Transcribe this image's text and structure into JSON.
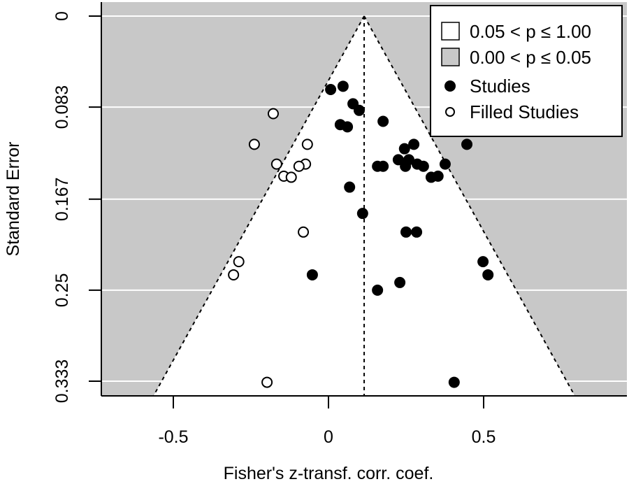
{
  "chart_data": {
    "type": "scatter",
    "subtype": "contour-enhanced funnel plot (trim-and-fill)",
    "title": "",
    "xlabel": "Fisher's z-transf. corr. coef.",
    "ylabel": "Standard Error",
    "xlim": [
      -0.73,
      0.96
    ],
    "ylim": [
      0.3461,
      0
    ],
    "y_reversed": true,
    "x_ticks": [
      -0.5,
      0,
      0.5
    ],
    "x_tick_labels": [
      "-0.5",
      "0",
      "0.5"
    ],
    "y_ticks": [
      0,
      0.083,
      0.167,
      0.25,
      0.333
    ],
    "y_tick_labels": [
      "0",
      "0.083",
      "0.167",
      "0.25",
      "0.333"
    ],
    "grid": "horizontal white lines at y ticks",
    "center_estimate": 0.115,
    "funnel": {
      "apex": [
        0.115,
        0
      ],
      "ci_multiplier": 1.96
    },
    "colors": {
      "significant_region": "#c8c8c8",
      "nonsignificant_region": "#ffffff",
      "studies": "#000000",
      "filled_studies_fill": "#ffffff",
      "filled_studies_stroke": "#000000"
    },
    "legend": {
      "position": "top-right",
      "entries": [
        {
          "label": "0.05 < p ≤ 1.00",
          "symbol": "square",
          "fill": "#ffffff"
        },
        {
          "label": "0.00 < p ≤ 0.05",
          "symbol": "square",
          "fill": "#c8c8c8"
        },
        {
          "label": "Studies",
          "symbol": "filled-circle",
          "fill": "#000000"
        },
        {
          "label": "Filled Studies",
          "symbol": "open-circle",
          "fill": "#ffffff"
        }
      ]
    },
    "series": [
      {
        "name": "Studies",
        "points": [
          {
            "x": 0.007,
            "y": 0.067
          },
          {
            "x": 0.047,
            "y": 0.064
          },
          {
            "x": 0.079,
            "y": 0.08
          },
          {
            "x": 0.099,
            "y": 0.086
          },
          {
            "x": 0.038,
            "y": 0.099
          },
          {
            "x": 0.061,
            "y": 0.101
          },
          {
            "x": 0.176,
            "y": 0.096
          },
          {
            "x": 0.245,
            "y": 0.121
          },
          {
            "x": 0.275,
            "y": 0.117
          },
          {
            "x": 0.446,
            "y": 0.117
          },
          {
            "x": 0.225,
            "y": 0.131
          },
          {
            "x": 0.259,
            "y": 0.131
          },
          {
            "x": 0.248,
            "y": 0.137
          },
          {
            "x": 0.286,
            "y": 0.135
          },
          {
            "x": 0.306,
            "y": 0.137
          },
          {
            "x": 0.376,
            "y": 0.135
          },
          {
            "x": 0.158,
            "y": 0.137
          },
          {
            "x": 0.176,
            "y": 0.137
          },
          {
            "x": 0.331,
            "y": 0.147
          },
          {
            "x": 0.353,
            "y": 0.146
          },
          {
            "x": 0.068,
            "y": 0.156
          },
          {
            "x": 0.11,
            "y": 0.18
          },
          {
            "x": 0.25,
            "y": 0.197
          },
          {
            "x": 0.284,
            "y": 0.197
          },
          {
            "x": 0.498,
            "y": 0.224
          },
          {
            "x": 0.514,
            "y": 0.236
          },
          {
            "x": -0.052,
            "y": 0.236
          },
          {
            "x": 0.23,
            "y": 0.243
          },
          {
            "x": 0.158,
            "y": 0.25
          },
          {
            "x": 0.405,
            "y": 0.334
          }
        ]
      },
      {
        "name": "Filled Studies",
        "points": [
          {
            "x": -0.178,
            "y": 0.089
          },
          {
            "x": -0.239,
            "y": 0.117
          },
          {
            "x": -0.068,
            "y": 0.117
          },
          {
            "x": -0.167,
            "y": 0.135
          },
          {
            "x": -0.074,
            "y": 0.135
          },
          {
            "x": -0.095,
            "y": 0.137
          },
          {
            "x": -0.144,
            "y": 0.146
          },
          {
            "x": -0.12,
            "y": 0.147
          },
          {
            "x": -0.081,
            "y": 0.197
          },
          {
            "x": -0.289,
            "y": 0.224
          },
          {
            "x": -0.306,
            "y": 0.236
          },
          {
            "x": -0.198,
            "y": 0.334
          }
        ]
      }
    ]
  }
}
